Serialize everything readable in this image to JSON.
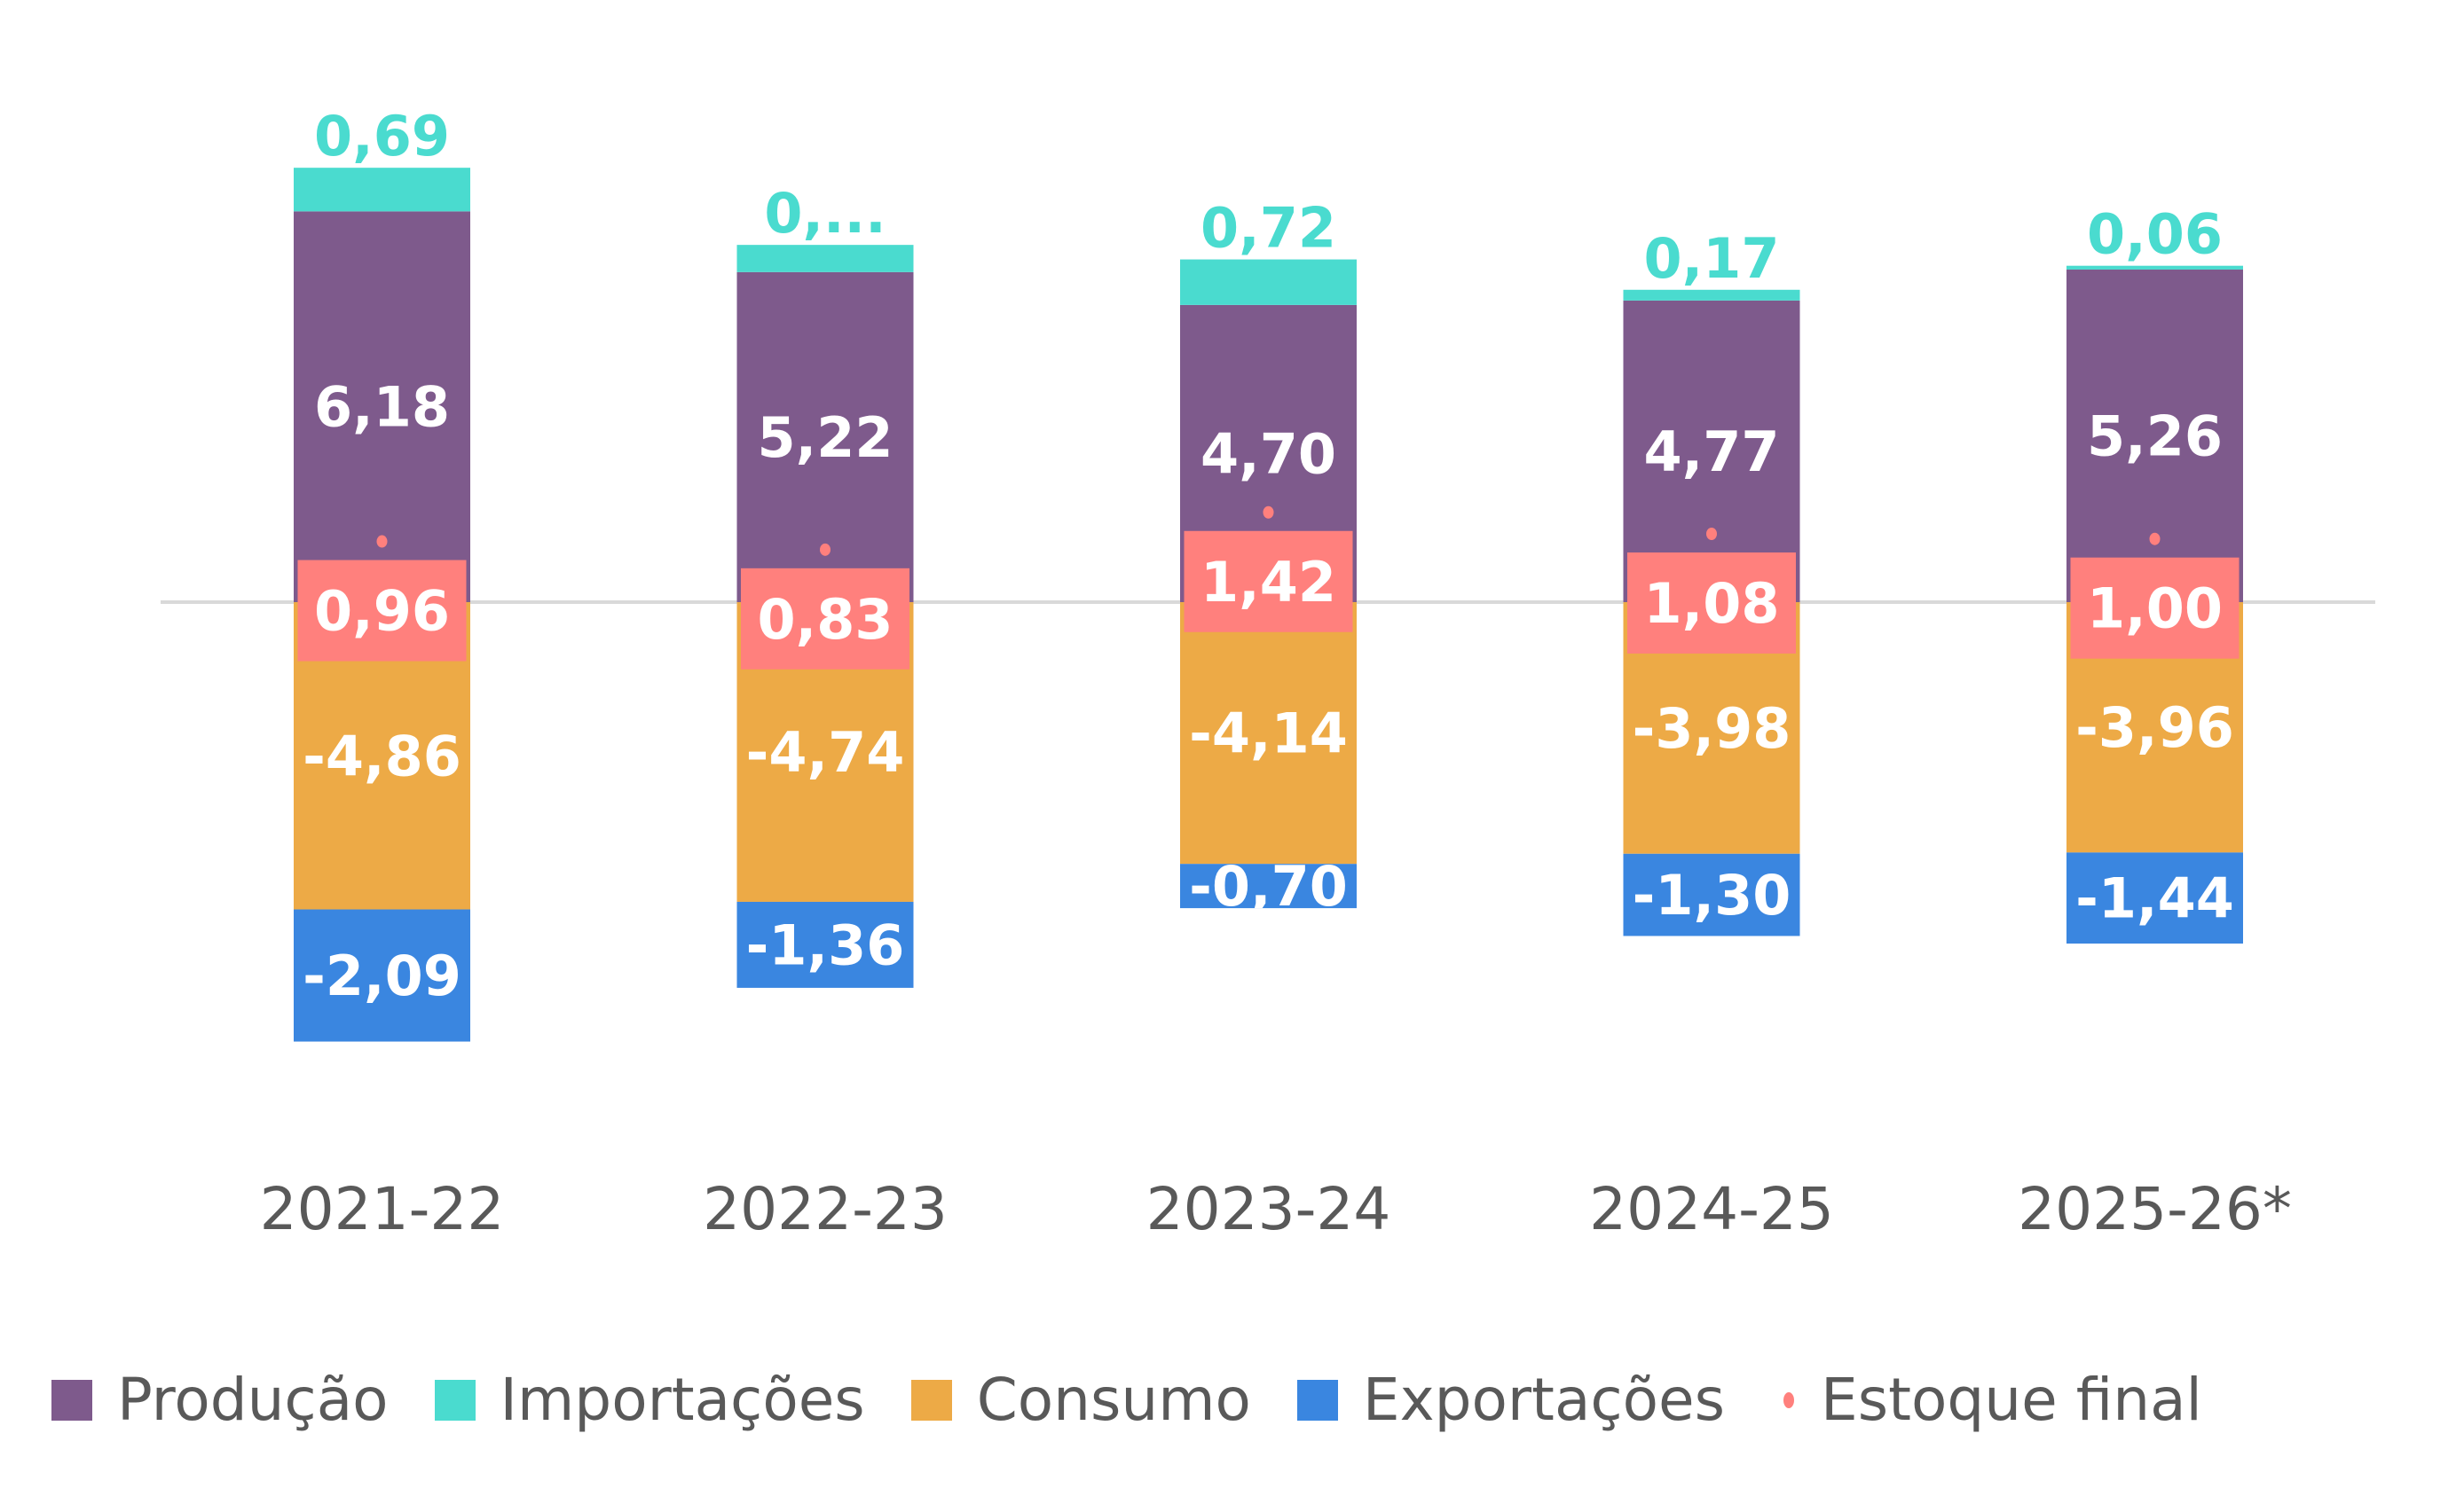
{
  "chart_data": {
    "type": "bar",
    "stacked": true,
    "title": "",
    "xlabel": "",
    "ylabel": "",
    "categories": [
      "2021-22",
      "2022-23",
      "2023-24",
      "2024-25",
      "2025-26*"
    ],
    "series": [
      {
        "name": "Produção",
        "color": "#7E5A8C",
        "values": [
          6.18,
          5.22,
          4.7,
          4.77,
          5.26
        ],
        "labels": [
          "6,18",
          "5,22",
          "4,70",
          "4,77",
          "5,26"
        ],
        "label_color": "#FFFFFF"
      },
      {
        "name": "Importações",
        "color": "#4ADBCF",
        "values": [
          0.69,
          0.43,
          0.72,
          0.17,
          0.06
        ],
        "labels": [
          "0,69",
          "0,...",
          "0,72",
          "0,17",
          "0,06"
        ],
        "label_color": "#4ADBCF"
      },
      {
        "name": "Consumo",
        "color": "#EDAA46",
        "values": [
          -4.86,
          -4.74,
          -4.14,
          -3.98,
          -3.96
        ],
        "labels": [
          "-4,86",
          "-4,74",
          "-4,14",
          "-3,98",
          "-3,96"
        ],
        "label_color": "#FFFFFF"
      },
      {
        "name": "Exportações",
        "color": "#3A86E0",
        "values": [
          -2.09,
          -1.36,
          -0.7,
          -1.3,
          -1.44
        ],
        "labels": [
          "-2,09",
          "-1,36",
          "-0,70",
          "-1,30",
          "-1,44"
        ],
        "label_color": "#FFFFFF"
      },
      {
        "name": "Estoque final",
        "color": "#FF807D",
        "type": "point",
        "values": [
          0.96,
          0.83,
          1.42,
          1.08,
          1.0
        ],
        "labels": [
          "0,96",
          "0,83",
          "1,42",
          "1,08",
          "1,00"
        ],
        "label_color": "#FFFFFF"
      }
    ],
    "ylim": [
      -3.2,
      9.5
    ],
    "grid": false,
    "zero_line": true,
    "legend": "bottom"
  },
  "legend": {
    "items": [
      {
        "label": "Produção",
        "color": "#7E5A8C",
        "marker": "square"
      },
      {
        "label": "Importações",
        "color": "#4ADBCF",
        "marker": "square"
      },
      {
        "label": "Consumo",
        "color": "#EDAA46",
        "marker": "square"
      },
      {
        "label": "Exportações",
        "color": "#3A86E0",
        "marker": "square"
      },
      {
        "label": "Estoque final",
        "color": "#FF807D",
        "marker": "dot"
      }
    ]
  }
}
